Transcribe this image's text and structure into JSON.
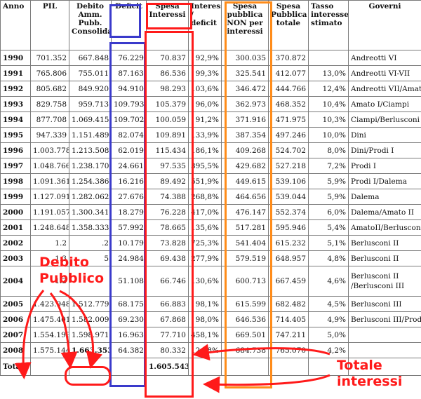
{
  "headers": [
    "Anno",
    "PIL",
    "Debito Amm. Pubb. Consolidato",
    "Deficit",
    "Spesa Interessi",
    "Interessi / deficit",
    "Spesa pubblica NON per interessi",
    "Spesa Pubblica totale",
    "Tasso interesse stimato",
    "Governi"
  ],
  "rows": [
    {
      "anno": "1990",
      "pil": "701.352",
      "debito": "667.848",
      "deficit": "76.229",
      "interessi": "70.837",
      "rapporto": "92,9%",
      "spesa_non_int": "300.035",
      "spesa_tot": "370.872",
      "tasso": "",
      "governi": "Andreotti VI"
    },
    {
      "anno": "1991",
      "pil": "765.806",
      "debito": "755.011",
      "deficit": "87.163",
      "interessi": "86.536",
      "rapporto": "99,3%",
      "spesa_non_int": "325.541",
      "spesa_tot": "412.077",
      "tasso": "13,0%",
      "governi": "Andreotti VI-VII"
    },
    {
      "anno": "1992",
      "pil": "805.682",
      "debito": "849.920",
      "deficit": "94.910",
      "interessi": "98.293",
      "rapporto": "103,6%",
      "spesa_non_int": "346.472",
      "spesa_tot": "444.766",
      "tasso": "12,4%",
      "governi": "Andreotti VII/Amato"
    },
    {
      "anno": "1993",
      "pil": "829.758",
      "debito": "959.713",
      "deficit": "109.793",
      "interessi": "105.379",
      "rapporto": "96,0%",
      "spesa_non_int": "362.973",
      "spesa_tot": "468.352",
      "tasso": "10,4%",
      "governi": "Amato I/Ciampi"
    },
    {
      "anno": "1994",
      "pil": "877.708",
      "debito": "1.069.415",
      "deficit": "109.702",
      "interessi": "100.059",
      "rapporto": "91,2%",
      "spesa_non_int": "371.916",
      "spesa_tot": "471.975",
      "tasso": "10,3%",
      "governi": "Ciampi/Berlusconi I"
    },
    {
      "anno": "1995",
      "pil": "947.339",
      "debito": "1.151.489",
      "deficit": "82.074",
      "interessi": "109.891",
      "rapporto": "133,9%",
      "spesa_non_int": "387.354",
      "spesa_tot": "497.246",
      "tasso": "10,0%",
      "governi": "Dini"
    },
    {
      "anno": "1996",
      "pil": "1.003.778",
      "debito": "1.213.508",
      "deficit": "62.019",
      "interessi": "115.434",
      "rapporto": "186,1%",
      "spesa_non_int": "409.268",
      "spesa_tot": "524.702",
      "tasso": "8,0%",
      "governi": "Dini/Prodi I"
    },
    {
      "anno": "1997",
      "pil": "1.048.766",
      "debito": "1.238.170",
      "deficit": "24.661",
      "interessi": "97.535",
      "rapporto": "395,5%",
      "spesa_non_int": "429.682",
      "spesa_tot": "527.218",
      "tasso": "7,2%",
      "governi": "Prodi I"
    },
    {
      "anno": "1998",
      "pil": "1.091.361",
      "debito": "1.254.386",
      "deficit": "16.216",
      "interessi": "89.492",
      "rapporto": "551,9%",
      "spesa_non_int": "449.615",
      "spesa_tot": "539.106",
      "tasso": "5,9%",
      "governi": "Prodi I/Dalema"
    },
    {
      "anno": "1999",
      "pil": "1.127.091",
      "debito": "1.282.062",
      "deficit": "27.676",
      "interessi": "74.388",
      "rapporto": "268,8%",
      "spesa_non_int": "464.656",
      "spesa_tot": "539.044",
      "tasso": "5,9%",
      "governi": "Dalema"
    },
    {
      "anno": "2000",
      "pil": "1.191.057",
      "debito": "1.300.341",
      "deficit": "18.279",
      "interessi": "76.228",
      "rapporto": "417,0%",
      "spesa_non_int": "476.147",
      "spesa_tot": "552.374",
      "tasso": "6,0%",
      "governi": "Dalema/Amato II"
    },
    {
      "anno": "2001",
      "pil": "1.248.648",
      "debito": "1.358.333",
      "deficit": "57.992",
      "interessi": "78.665",
      "rapporto": "135,6%",
      "spesa_non_int": "517.281",
      "spesa_tot": "595.946",
      "tasso": "5,4%",
      "governi": "AmatoII/Berlusconi II"
    },
    {
      "anno": "2002",
      "pil": "1.2",
      "debito": ".2",
      "deficit": "10.179",
      "interessi": "73.828",
      "rapporto": "725,3%",
      "spesa_non_int": "541.404",
      "spesa_tot": "615.232",
      "tasso": "5,1%",
      "governi": "Berlusconi II"
    },
    {
      "anno": "2003",
      "pil": "1.3",
      "debito": "5",
      "deficit": "24.984",
      "interessi": "69.438",
      "rapporto": "277,9%",
      "spesa_non_int": "579.519",
      "spesa_tot": "648.957",
      "tasso": "4,8%",
      "governi": "Berlusconi II"
    },
    {
      "anno": "2004",
      "pil": "1.3",
      "debito": "",
      "deficit": "51.108",
      "interessi": "66.746",
      "rapporto": "130,6%",
      "spesa_non_int": "600.713",
      "spesa_tot": "667.459",
      "tasso": "4,6%",
      "governi": "Berlusconi II /Berlusconi III"
    },
    {
      "anno": "2005",
      "pil": "1.423.948",
      "debito": "1.512.779",
      "deficit": "68.175",
      "interessi": "66.883",
      "rapporto": "98,1%",
      "spesa_non_int": "615.599",
      "spesa_tot": "682.482",
      "tasso": "4,5%",
      "governi": "Berlusconi III"
    },
    {
      "anno": "2006",
      "pil": "1.475.401",
      "debito": "1.582.009",
      "deficit": "69.230",
      "interessi": "67.868",
      "rapporto": "98,0%",
      "spesa_non_int": "646.536",
      "spesa_tot": "714.405",
      "tasso": "4,9%",
      "governi": "Berlusconi III/Prodi II"
    },
    {
      "anno": "2007",
      "pil": "1.554.199",
      "debito": "1.598.971",
      "deficit": "16.963",
      "interessi": "77.710",
      "rapporto": "458,1%",
      "spesa_non_int": "669.501",
      "spesa_tot": "747.211",
      "tasso": "5,0%",
      "governi": ""
    },
    {
      "anno": "2008",
      "pil": "1.575.144",
      "debito": "1.663.353",
      "deficit": "64.382",
      "interessi": "80.332",
      "rapporto": "124,8%",
      "spesa_non_int": "684.738",
      "spesa_tot": "765.070",
      "tasso": "4,2%",
      "governi": ""
    }
  ],
  "totals": {
    "label": "Totali",
    "interessi": "1.605.543"
  },
  "annotations": {
    "debito": [
      "Debito",
      "Pubblico"
    ],
    "interessi": [
      "Totale",
      "interessi"
    ]
  },
  "colors": {
    "blue": "#3a3acb",
    "red": "#ff1a1a",
    "orange": "#ff8c1a",
    "border": "#7a7a7a"
  }
}
